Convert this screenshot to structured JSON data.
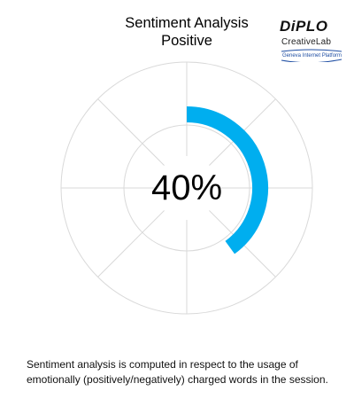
{
  "chart_data": {
    "type": "radial-progress",
    "title_line1": "Sentiment Analysis",
    "title_line2": "Positive",
    "value": 40,
    "value_label": "40%",
    "max": 100,
    "bar_color": "#00aeef",
    "grid_color": "#d9d9d9"
  },
  "logo": {
    "brand": "DiPLO",
    "sub": "CreativeLab",
    "tagline": "Geneva Internet Platform",
    "brand_color": "#111111",
    "accent_color": "#1f4ea3"
  },
  "footnote": "Sentiment analysis is computed in respect to the usage of emotionally (positively/negatively) charged words in the session."
}
